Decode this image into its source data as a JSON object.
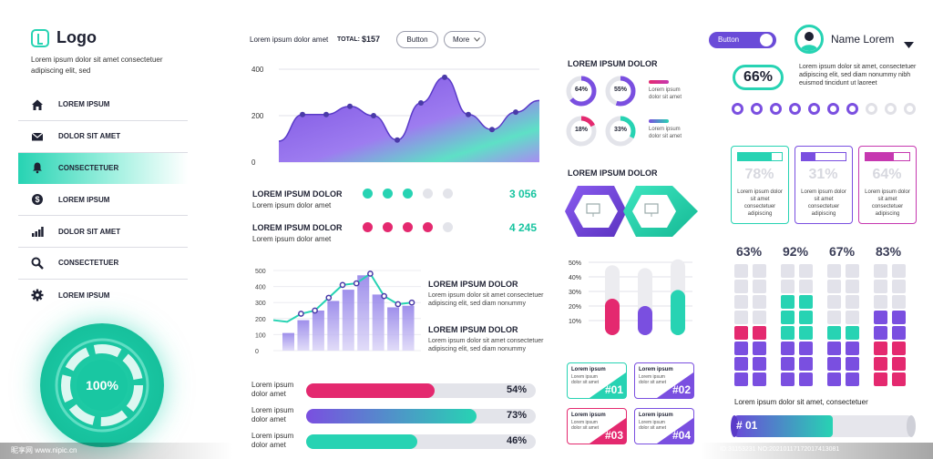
{
  "sidebar": {
    "logo": "Logo",
    "description": "Lorem ipsum dolor sit amet consectetuer adipiscing elit, sed",
    "items": [
      {
        "label": "LOREM IPSUM",
        "icon": "home-icon"
      },
      {
        "label": "DOLOR SIT AMET",
        "icon": "mail-icon"
      },
      {
        "label": "CONSECTETUER",
        "icon": "bell-icon",
        "active": true
      },
      {
        "label": "LOREM IPSUM",
        "icon": "dollar-icon"
      },
      {
        "label": "DOLOR SIT AMET",
        "icon": "bar-chart-icon"
      },
      {
        "label": "CONSECTETUER",
        "icon": "search-icon"
      },
      {
        "label": "LOREM IPSUM",
        "icon": "gear-icon"
      }
    ],
    "ring": {
      "label": "100%",
      "progress": 1.0
    }
  },
  "topbar": {
    "text": "Lorem ipsum dolor amet",
    "total_label": "TOTAL:",
    "total_value": "$157",
    "button_label": "Button",
    "more_label": "More"
  },
  "area_chart": {
    "yticks": [
      "400",
      "200",
      "0"
    ],
    "ylim": [
      0,
      400
    ],
    "points": [
      90,
      205,
      205,
      240,
      200,
      95,
      255,
      365,
      205,
      140,
      215,
      265
    ]
  },
  "stats": [
    {
      "title": "LOREM IPSUM DOLOR",
      "subtitle": "Lorem ipsum dolor amet",
      "value": "3 056",
      "filled": 3,
      "total": 5,
      "color": "#27d3b3"
    },
    {
      "title": "LOREM IPSUM DOLOR",
      "subtitle": "Lorem ipsum dolor amet",
      "value": "4 245",
      "filled": 4,
      "total": 5,
      "color": "#e4296f"
    }
  ],
  "combo_chart": {
    "yticks": [
      "500",
      "400",
      "300",
      "200",
      "100",
      "0"
    ],
    "ylim": [
      0,
      500
    ],
    "bars": [
      110,
      190,
      250,
      310,
      380,
      470,
      350,
      270,
      280
    ],
    "line": [
      190,
      180,
      230,
      250,
      330,
      410,
      420,
      480,
      340,
      290,
      300
    ]
  },
  "combo_texts": [
    {
      "title": "LOREM IPSUM DOLOR",
      "text": "Lorem ipsum dolor sit amet consectetuer adipiscing elit, sed diam nonummy"
    },
    {
      "title": "LOREM IPSUM DOLOR",
      "text": "Lorem ipsum dolor sit amet consectetuer adipiscing elit, sed diam nonummy"
    }
  ],
  "progress_bars": [
    {
      "label": "Lorem ipsum dolor amet",
      "value": "54%",
      "fraction": 0.54,
      "color": "#e4296f"
    },
    {
      "label": "Lorem ipsum dolor amet",
      "value": "73%",
      "fraction": 0.73,
      "color": "#7a4fe0"
    },
    {
      "label": "Lorem ipsum dolor amet",
      "value": "46%",
      "fraction": 0.46,
      "color": "#27d3b3"
    }
  ],
  "donuts": {
    "title": "LOREM IPSUM DOLOR",
    "items": [
      {
        "label": "64%",
        "fraction": 0.64,
        "color": "#7a4fe0"
      },
      {
        "label": "55%",
        "fraction": 0.55,
        "color": "#7a4fe0"
      },
      {
        "label": "18%",
        "fraction": 0.18,
        "color": "#e4296f"
      },
      {
        "label": "33%",
        "fraction": 0.33,
        "color": "#27d3b3"
      }
    ],
    "legend": [
      {
        "text": "Lorem ipsum dolor sit amet",
        "color": "#e4296f"
      },
      {
        "text": "Lorem ipsum dolor sit amet",
        "color": "#27d3b3"
      }
    ]
  },
  "hexes": {
    "title": "LOREM IPSUM DOLOR"
  },
  "bar_chart": {
    "yticks": [
      "50%",
      "40%",
      "30%",
      "20%",
      "10%"
    ],
    "ylim": [
      0,
      50
    ],
    "values": [
      25,
      20,
      31
    ],
    "background": [
      48,
      46,
      52
    ],
    "colors": [
      "#e4296f",
      "#7a4fe0",
      "#27d3b3"
    ]
  },
  "tags": [
    {
      "title": "Lorem ipsum",
      "text": "Lorem ipsum dolor sit amet",
      "num": "#01",
      "color": "#27d3b3"
    },
    {
      "title": "Lorem ipsum",
      "text": "Lorem ipsum dolor sit amet",
      "num": "#02",
      "color": "#7a4fe0"
    },
    {
      "title": "Lorem ipsum",
      "text": "Lorem ipsum dolor sit amet",
      "num": "#03",
      "color": "#e4296f"
    },
    {
      "title": "Lorem ipsum",
      "text": "Lorem ipsum dolor sit amet",
      "num": "#04",
      "color": "#7a4fe0"
    }
  ],
  "header": {
    "toggle_label": "Button",
    "user_name": "Name Lorem"
  },
  "kpi": {
    "value": "66%",
    "text": "Lorem ipsum dolor sit amet, consectetuer adipiscing elit, sed diam nonummy nibh euismod tincidunt ut laoreet",
    "dots_filled": 7,
    "dots_total": 10
  },
  "cards": [
    {
      "pct": "78%",
      "fraction": 0.78,
      "text": "Lorem ipsum dolor sit amet consectetuer adipiscing",
      "color": "#27d3b3"
    },
    {
      "pct": "31%",
      "fraction": 0.31,
      "text": "Lorem ipsum dolor sit amet consectetuer adipiscing",
      "color": "#7a4fe0"
    },
    {
      "pct": "64%",
      "fraction": 0.64,
      "text": "Lorem ipsum dolor sit amet consectetuer adipiscing",
      "color": "#c638b0"
    }
  ],
  "square_columns": [
    {
      "pct": "63%",
      "filled": 4,
      "total": 8,
      "color1": "#e4296f",
      "color2": "#7a4fe0"
    },
    {
      "pct": "92%",
      "filled": 6,
      "total": 8,
      "color1": "#27d3b3",
      "color2": "#7a4fe0"
    },
    {
      "pct": "67%",
      "filled": 4,
      "total": 8,
      "color1": "#27d3b3",
      "color2": "#7a4fe0"
    },
    {
      "pct": "83%",
      "filled": 5,
      "total": 8,
      "color1": "#7a4fe0",
      "color2": "#e4296f"
    }
  ],
  "footer": {
    "text": "Lorem ipsum dolor sit amet, consectetuer",
    "cylinder_label": "# 01",
    "cylinder_fraction": 0.55
  },
  "watermarks": {
    "left": "昵享网 www.nipic.cn",
    "right": "ID:31153231 NO:20210117172017413081"
  },
  "colors": {
    "teal": "#27d3b3",
    "purple": "#7a4fe0",
    "pink": "#e4296f",
    "magenta": "#c638b0"
  }
}
